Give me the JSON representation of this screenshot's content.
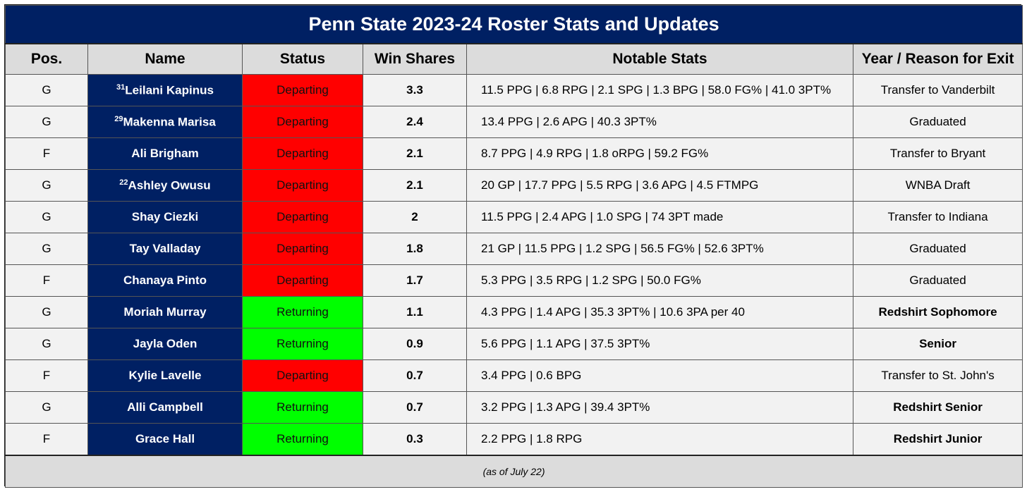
{
  "title": "Penn State 2023-24 Roster Stats and Updates",
  "headers": [
    "Pos.",
    "Name",
    "Status",
    "Win Shares",
    "Notable Stats",
    "Year / Reason for Exit"
  ],
  "rows": [
    {
      "pos": "G",
      "sup": "31",
      "name": "Leilani Kapinus",
      "status": "Departing",
      "ws": "3.3",
      "stats": "11.5 PPG | 6.8 RPG | 2.1 SPG | 1.3 BPG | 58.0 FG% | 41.0 3PT%",
      "exit": "Transfer to Vanderbilt",
      "exit_bold": false
    },
    {
      "pos": "G",
      "sup": "29",
      "name": "Makenna Marisa",
      "status": "Departing",
      "ws": "2.4",
      "stats": "13.4 PPG | 2.6 APG | 40.3 3PT%",
      "exit": "Graduated",
      "exit_bold": false
    },
    {
      "pos": "F",
      "sup": "",
      "name": "Ali Brigham",
      "status": "Departing",
      "ws": "2.1",
      "stats": "8.7 PPG | 4.9 RPG | 1.8 oRPG | 59.2 FG%",
      "exit": "Transfer to Bryant",
      "exit_bold": false
    },
    {
      "pos": "G",
      "sup": "22",
      "name": "Ashley Owusu",
      "status": "Departing",
      "ws": "2.1",
      "stats": "20 GP | 17.7 PPG | 5.5 RPG | 3.6 APG | 4.5 FTMPG",
      "exit": "WNBA Draft",
      "exit_bold": false
    },
    {
      "pos": "G",
      "sup": "",
      "name": "Shay Ciezki",
      "status": "Departing",
      "ws": "2",
      "stats": "11.5 PPG | 2.4 APG | 1.0 SPG | 74 3PT made",
      "exit": "Transfer to Indiana",
      "exit_bold": false
    },
    {
      "pos": "G",
      "sup": "",
      "name": "Tay Valladay",
      "status": "Departing",
      "ws": "1.8",
      "stats": "21 GP | 11.5 PPG | 1.2 SPG | 56.5 FG% | 52.6 3PT%",
      "exit": "Graduated",
      "exit_bold": false
    },
    {
      "pos": "F",
      "sup": "",
      "name": "Chanaya Pinto",
      "status": "Departing",
      "ws": "1.7",
      "stats": "5.3 PPG | 3.5 RPG | 1.2 SPG | 50.0 FG%",
      "exit": "Graduated",
      "exit_bold": false
    },
    {
      "pos": "G",
      "sup": "",
      "name": "Moriah Murray",
      "status": "Returning",
      "ws": "1.1",
      "stats": "4.3 PPG | 1.4 APG | 35.3 3PT% | 10.6 3PA per 40",
      "exit": "Redshirt Sophomore",
      "exit_bold": true
    },
    {
      "pos": "G",
      "sup": "",
      "name": "Jayla Oden",
      "status": "Returning",
      "ws": "0.9",
      "stats": "5.6 PPG | 1.1 APG | 37.5 3PT%",
      "exit": "Senior",
      "exit_bold": true
    },
    {
      "pos": "F",
      "sup": "",
      "name": "Kylie Lavelle",
      "status": "Departing",
      "ws": "0.7",
      "stats": "3.4 PPG | 0.6 BPG",
      "exit": "Transfer to St. John's",
      "exit_bold": false
    },
    {
      "pos": "G",
      "sup": "",
      "name": "Alli Campbell",
      "status": "Returning",
      "ws": "0.7",
      "stats": "3.2 PPG | 1.3 APG | 39.4 3PT%",
      "exit": "Redshirt Senior",
      "exit_bold": true
    },
    {
      "pos": "F",
      "sup": "",
      "name": "Grace Hall",
      "status": "Returning",
      "ws": "0.3",
      "stats": "2.2 PPG | 1.8 RPG",
      "exit": "Redshirt Junior",
      "exit_bold": true
    }
  ],
  "footnote": "(as of July 22)",
  "colors": {
    "navy": "#002063",
    "departing": "#ff0000",
    "returning": "#00ff00",
    "header_bg": "#dcdcdc",
    "row_bg": "#f2f2f2"
  }
}
